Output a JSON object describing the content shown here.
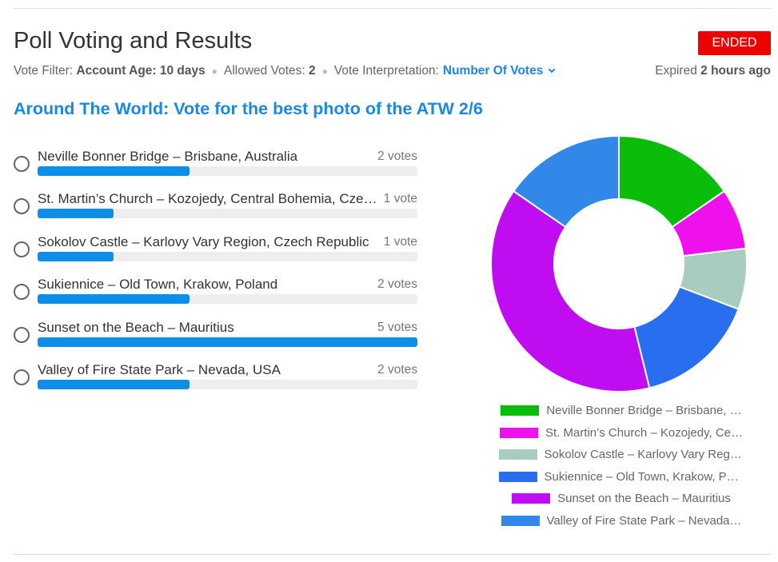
{
  "header": {
    "title": "Poll Voting and Results",
    "status_badge": "ENDED",
    "vote_filter_label": "Vote Filter:",
    "vote_filter_value": "Account Age: 10 days",
    "allowed_votes_label": "Allowed Votes:",
    "allowed_votes_value": "2",
    "interpretation_label": "Vote Interpretation:",
    "interpretation_value": "Number Of Votes",
    "expired_label": "Expired",
    "expired_value": "2 hours ago"
  },
  "poll": {
    "title": "Around The World: Vote for the best photo of the ATW 2/6",
    "max_votes": 5,
    "options": [
      {
        "label": "Neville Bonner Bridge – Brisbane, Australia",
        "votes": 2,
        "votes_text": "2 votes",
        "legend": "Neville Bonner Bridge – Brisbane, …",
        "color": "#0bbd0b"
      },
      {
        "label": "St. Martin’s Church – Kozojedy, Central Bohemia, Czech Republic",
        "votes": 1,
        "votes_text": "1 vote",
        "legend": "St. Martin’s Church – Kozojedy, Ce…",
        "color": "#ee11ee"
      },
      {
        "label": "Sokolov Castle – Karlovy Vary Region, Czech Republic",
        "votes": 1,
        "votes_text": "1 vote",
        "legend": "Sokolov Castle – Karlovy Vary Regi…",
        "color": "#a8ccbd"
      },
      {
        "label": "Sukiennice – Old Town, Krakow, Poland",
        "votes": 2,
        "votes_text": "2 votes",
        "legend": "Sukiennice – Old Town, Krakow, Pol…",
        "color": "#2a6ef0"
      },
      {
        "label": "Sunset on the Beach – Mauritius",
        "votes": 5,
        "votes_text": "5 votes",
        "legend": "Sunset on the Beach – Mauritius",
        "color": "#c00cf0"
      },
      {
        "label": "Valley of Fire State Park – Nevada, USA",
        "votes": 2,
        "votes_text": "2 votes",
        "legend": "Valley of Fire State Park – Nevada…",
        "color": "#3288e8"
      }
    ]
  },
  "chart_data": {
    "type": "pie",
    "categories": [
      "Neville Bonner Bridge – Brisbane, Australia",
      "St. Martin’s Church – Kozojedy, Central Bohemia, Czech Republic",
      "Sokolov Castle – Karlovy Vary Region, Czech Republic",
      "Sukiennice – Old Town, Krakow, Poland",
      "Sunset on the Beach – Mauritius",
      "Valley of Fire State Park – Nevada, USA"
    ],
    "values": [
      2,
      1,
      1,
      2,
      5,
      2
    ],
    "colors": [
      "#0bbd0b",
      "#ee11ee",
      "#a8ccbd",
      "#2a6ef0",
      "#c00cf0",
      "#3288e8"
    ],
    "legend": "bottom"
  }
}
